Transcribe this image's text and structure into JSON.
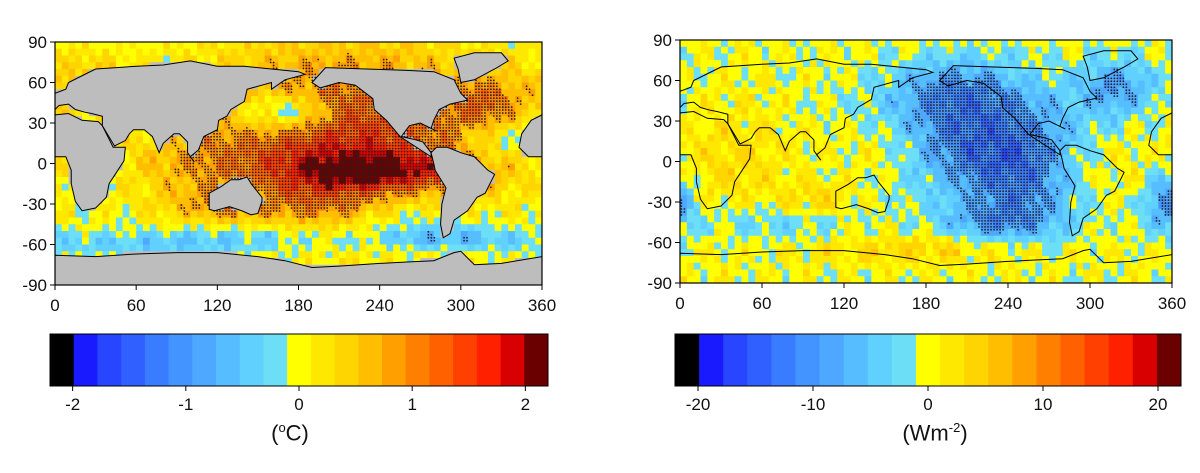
{
  "palette": {
    "colors": [
      "#000000",
      "#1a1aff",
      "#2845ff",
      "#3060ff",
      "#3a7cff",
      "#4494ff",
      "#4ea8ff",
      "#56bdff",
      "#60d0ff",
      "#6cdef6",
      "#ffff00",
      "#ffe800",
      "#ffd500",
      "#ffbf00",
      "#ffa000",
      "#ff8000",
      "#ff6000",
      "#ff4000",
      "#ff2000",
      "#d80000",
      "#6b0000"
    ],
    "land": "#bdbdbd",
    "coast": "#000000",
    "stipple": "#222222"
  },
  "chart_data": [
    {
      "type": "heatmap",
      "title": "",
      "xlabel": "",
      "ylabel": "",
      "xlim": [
        0,
        360
      ],
      "ylim": [
        -90,
        90
      ],
      "x_ticks": [
        "0",
        "60",
        "120",
        "180",
        "240",
        "300",
        "360"
      ],
      "y_ticks": [
        "90",
        "60",
        "30",
        "0",
        "-30",
        "-60",
        "-90"
      ],
      "land_masked": true,
      "stippling": "significant regions",
      "colorbar": {
        "range": [
          -2.2,
          2.2
        ],
        "ticks": [
          "-2",
          "-1",
          "0",
          "1",
          "2"
        ],
        "tick_values": [
          -2,
          -1,
          0,
          1,
          2
        ],
        "unit_base": "(",
        "unit_sup": "o",
        "unit_tail": "C)"
      },
      "features": [
        {
          "lon": 215,
          "lat": 20,
          "rx": 75,
          "ry": 45,
          "value": 1.5
        },
        {
          "lon": 235,
          "lat": -5,
          "rx": 50,
          "ry": 10,
          "value": 1.2
        },
        {
          "lon": 170,
          "lat": 38,
          "rx": 25,
          "ry": 10,
          "value": -1.2
        },
        {
          "lon": 320,
          "lat": 45,
          "rx": 20,
          "ry": 15,
          "value": 0.7
        },
        {
          "lon": 330,
          "lat": 18,
          "rx": 22,
          "ry": 10,
          "value": -0.5
        },
        {
          "lon": 120,
          "lat": -32,
          "rx": 25,
          "ry": 8,
          "value": 0.5
        },
        {
          "lon": 200,
          "lat": -30,
          "rx": 30,
          "ry": 12,
          "value": 0.4
        },
        {
          "lon": 260,
          "lat": -40,
          "rx": 40,
          "ry": 15,
          "value": -0.5
        },
        {
          "lon": 100,
          "lat": 0,
          "rx": 30,
          "ry": 20,
          "value": 0.4
        },
        {
          "lon": 150,
          "lat": -55,
          "rx": 50,
          "ry": 8,
          "value": -0.5
        },
        {
          "lon": 60,
          "lat": -60,
          "rx": 60,
          "ry": 6,
          "value": -0.4
        },
        {
          "lon": 290,
          "lat": -55,
          "rx": 40,
          "ry": 6,
          "value": -0.6
        },
        {
          "lon": 25,
          "lat": 60,
          "rx": 20,
          "ry": 15,
          "value": 0.5
        }
      ]
    },
    {
      "type": "heatmap",
      "title": "",
      "xlabel": "",
      "ylabel": "",
      "xlim": [
        0,
        360
      ],
      "ylim": [
        -90,
        90
      ],
      "x_ticks": [
        "0",
        "60",
        "120",
        "180",
        "240",
        "300",
        "360"
      ],
      "y_ticks": [
        "90",
        "60",
        "30",
        "0",
        "-30",
        "-60",
        "-90"
      ],
      "land_masked": false,
      "stippling": "significant regions",
      "colorbar": {
        "range": [
          -22,
          22
        ],
        "ticks": [
          "-20",
          "-10",
          "0",
          "10",
          "20"
        ],
        "tick_values": [
          -20,
          -10,
          0,
          10,
          20
        ],
        "unit_base": "(Wm",
        "unit_sup": "-2",
        "unit_tail": ")"
      },
      "features": [
        {
          "lon": 220,
          "lat": 20,
          "rx": 50,
          "ry": 28,
          "value": -12
        },
        {
          "lon": 250,
          "lat": -20,
          "rx": 30,
          "ry": 25,
          "value": -8
        },
        {
          "lon": 200,
          "lat": 55,
          "rx": 30,
          "ry": 15,
          "value": -6
        },
        {
          "lon": 320,
          "lat": 55,
          "rx": 20,
          "ry": 15,
          "value": -8
        },
        {
          "lon": 355,
          "lat": -30,
          "rx": 10,
          "ry": 15,
          "value": -10
        },
        {
          "lon": 100,
          "lat": -30,
          "rx": 20,
          "ry": 10,
          "value": 4
        },
        {
          "lon": 40,
          "lat": 0,
          "rx": 30,
          "ry": 30,
          "value": 3
        },
        {
          "lon": 150,
          "lat": 10,
          "rx": 25,
          "ry": 15,
          "value": 4
        },
        {
          "lon": 300,
          "lat": 0,
          "rx": 25,
          "ry": 20,
          "value": 3
        },
        {
          "lon": 180,
          "lat": -65,
          "rx": 60,
          "ry": 8,
          "value": 4
        },
        {
          "lon": 70,
          "lat": -45,
          "rx": 40,
          "ry": 10,
          "value": -4
        },
        {
          "lon": 230,
          "lat": -45,
          "rx": 30,
          "ry": 10,
          "value": -6
        }
      ]
    }
  ]
}
